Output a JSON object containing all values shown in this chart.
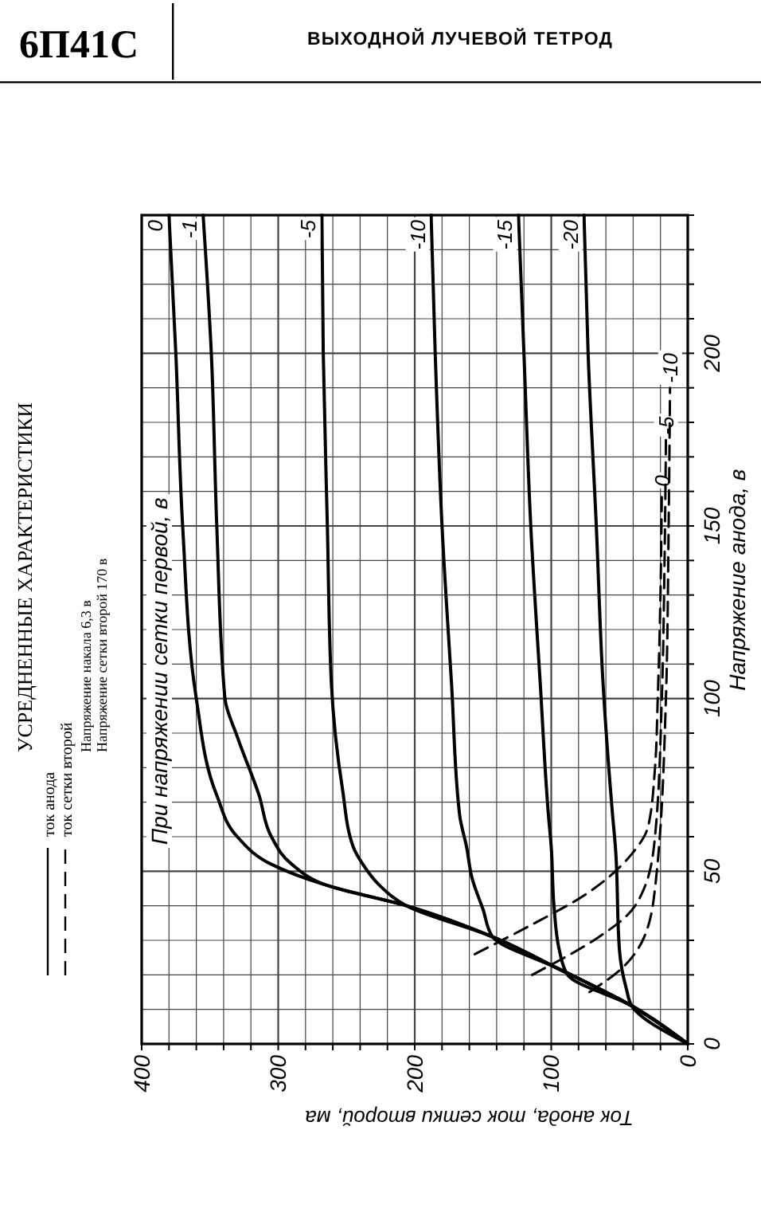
{
  "chart_data": {
    "type": "line",
    "title": "6П41С",
    "subtitle": "ВЫХОДНОЙ ЛУЧЕВОЙ ТЕТРОД",
    "xlabel": "Ток анода, ток сетки второй, ма",
    "ylabel": "Напряжение анода, в",
    "annotations": [
      "УСРЕДНЕННЫЕ ХАРАКТЕРИСТИКИ",
      "ток анода",
      "ток сетки второй",
      "Напряжение накала 6,3 в",
      "Напряжение сетки второй 170 в",
      "При напряжении сетки первой, в"
    ],
    "xlim": [
      400,
      0
    ],
    "ylim": [
      0,
      240
    ],
    "xticks": [
      0,
      {
        "value": 20,
        "label": null
      },
      {
        "value": 40,
        "label": null
      },
      {
        "value": 60,
        "label": null
      },
      {
        "value": 80,
        "label": null
      },
      100,
      {
        "value": 120,
        "label": null
      },
      {
        "value": 140,
        "label": null
      },
      {
        "value": 160,
        "label": null
      },
      {
        "value": 180,
        "label": null
      },
      200,
      {
        "value": 220,
        "label": null
      },
      {
        "value": 240,
        "label": null
      },
      {
        "value": 260,
        "label": null
      },
      {
        "value": 280,
        "label": null
      },
      300,
      {
        "value": 320,
        "label": null
      },
      {
        "value": 340,
        "label": null
      },
      {
        "value": 360,
        "label": null
      },
      {
        "value": 380,
        "label": null
      },
      400
    ],
    "yticks": [
      0,
      {
        "value": 10,
        "label": null
      },
      {
        "value": 20,
        "label": null
      },
      {
        "value": 30,
        "label": null
      },
      {
        "value": 40,
        "label": null
      },
      50,
      {
        "value": 60,
        "label": null
      },
      {
        "value": 70,
        "label": null
      },
      {
        "value": 80,
        "label": null
      },
      {
        "value": 90,
        "label": null
      },
      100,
      {
        "value": 110,
        "label": null
      },
      {
        "value": 120,
        "label": null
      },
      {
        "value": 130,
        "label": null
      },
      {
        "value": 140,
        "label": null
      },
      150,
      {
        "value": 160,
        "label": null
      },
      {
        "value": 170,
        "label": null
      },
      {
        "value": 180,
        "label": null
      },
      {
        "value": 190,
        "label": null
      },
      200,
      {
        "value": 210,
        "label": null
      },
      {
        "value": 220,
        "label": null
      },
      {
        "value": 230,
        "label": null
      },
      {
        "value": 240,
        "label": null
      }
    ],
    "grid": true,
    "marker": "none",
    "series": [
      {
        "name": "0",
        "color": "#000000",
        "line_style": "solid",
        "x": [
          0,
          41,
          96,
          143,
          206,
          265,
          305,
          330,
          345,
          360,
          370,
          375,
          380
        ],
        "values": [
          0,
          11,
          22,
          31,
          40,
          46,
          52,
          60,
          72,
          100,
          150,
          200,
          240
        ]
      },
      {
        "name": "-1",
        "color": "#000000",
        "line_style": "solid",
        "x": [
          0,
          41,
          96,
          143,
          206,
          265,
          290,
          305,
          314,
          330,
          339,
          345,
          349,
          355
        ],
        "values": [
          0,
          11,
          22,
          31,
          40,
          46,
          52,
          60,
          72,
          89,
          100,
          150,
          200,
          240
        ]
      },
      {
        "name": "-5",
        "color": "#000000",
        "line_style": "solid",
        "x": [
          0,
          41,
          96,
          143,
          206,
          226,
          238,
          245,
          253,
          261,
          264,
          267,
          268
        ],
        "values": [
          0,
          11,
          22,
          31,
          40,
          46,
          52,
          57,
          74,
          104,
          150,
          200,
          240
        ]
      },
      {
        "name": "-10",
        "color": "#000000",
        "line_style": "solid",
        "x": [
          0,
          41,
          96,
          143,
          150,
          158,
          162,
          167,
          173,
          180,
          185,
          188
        ],
        "values": [
          0,
          11,
          22,
          31,
          39,
          48,
          57,
          66,
          104,
          150,
          200,
          240
        ]
      },
      {
        "name": "-15",
        "color": "#000000",
        "line_style": "solid",
        "x": [
          0,
          41,
          88,
          94,
          98,
          100,
          102,
          108,
          115,
          120,
          124
        ],
        "values": [
          0,
          11,
          20,
          27,
          40,
          57,
          66,
          104,
          150,
          200,
          240
        ]
      },
      {
        "name": "-20",
        "color": "#000000",
        "line_style": "solid",
        "x": [
          0,
          41,
          45,
          50,
          53,
          55,
          62,
          67,
          73,
          76
        ],
        "values": [
          0,
          11,
          16,
          27,
          57,
          66,
          104,
          150,
          200,
          240
        ]
      },
      {
        "name": "0",
        "color": "#000000",
        "line_style": "dashed",
        "x": [
          156,
          112,
          76,
          41,
          29,
          24,
          22,
          20,
          19
        ],
        "values": [
          26,
          35,
          43,
          55,
          63,
          80,
          100,
          130,
          160
        ]
      },
      {
        "name": "-5",
        "color": "#000000",
        "line_style": "dashed",
        "x": [
          114,
          65,
          45,
          32,
          24,
          19,
          17,
          16
        ],
        "values": [
          20,
          31,
          37,
          45,
          60,
          100,
          140,
          175
        ]
      },
      {
        "name": "-10",
        "color": "#000000",
        "line_style": "dashed",
        "x": [
          72,
          48,
          33,
          24,
          16,
          14,
          13
        ],
        "values": [
          15,
          22,
          30,
          45,
          100,
          150,
          190
        ]
      }
    ]
  }
}
